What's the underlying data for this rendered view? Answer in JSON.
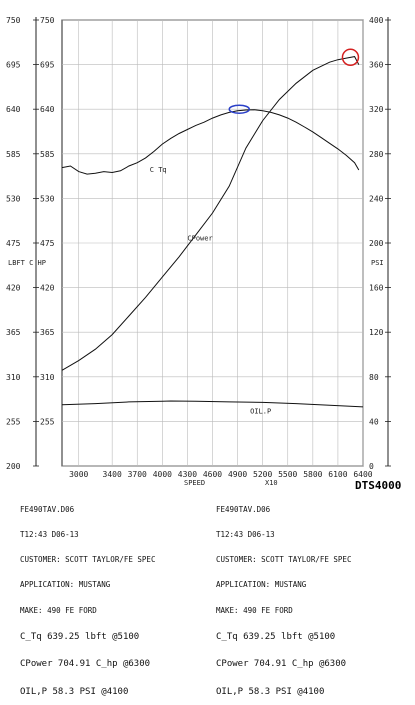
{
  "chart_data": {
    "type": "line",
    "brand": "DTS4000",
    "x_axis": {
      "label": "SPEED",
      "multiplier_label": "X10",
      "range": [
        2800,
        6400
      ],
      "ticks": [
        "3000",
        "3400",
        "3700",
        "4000",
        "4300",
        "4600",
        "4900",
        "5200",
        "5500",
        "5800",
        "6100",
        "6400"
      ]
    },
    "left_axis": {
      "label": "LBFT C HP",
      "range": [
        200,
        750
      ],
      "ticks": [
        "200",
        "255",
        "310",
        "365",
        "420",
        "475",
        "530",
        "585",
        "640",
        "695",
        "750"
      ]
    },
    "inner_left_axis": {
      "range": [
        200,
        750
      ],
      "ticks": [
        "750",
        "695",
        "640",
        "585",
        "530",
        "475",
        "420",
        "365",
        "310",
        "255"
      ]
    },
    "right_axis": {
      "label": "PSI",
      "range": [
        0,
        400
      ],
      "ticks": [
        "0",
        "40",
        "80",
        "120",
        "160",
        "200",
        "240",
        "280",
        "320",
        "360",
        "400"
      ]
    },
    "series": [
      {
        "name": "C Tq",
        "axis": "left",
        "x": [
          2800,
          2900,
          3000,
          3100,
          3200,
          3300,
          3400,
          3500,
          3600,
          3700,
          3800,
          3900,
          4000,
          4100,
          4200,
          4300,
          4400,
          4500,
          4600,
          4700,
          4800,
          4900,
          5000,
          5100,
          5200,
          5300,
          5400,
          5500,
          5600,
          5700,
          5800,
          5900,
          6000,
          6100,
          6200,
          6300,
          6350
        ],
        "y": [
          568,
          570,
          563,
          560,
          561,
          563,
          562,
          564,
          570,
          574,
          580,
          588,
          597,
          604,
          610,
          615,
          620,
          624,
          629,
          633,
          636,
          638,
          639,
          639.25,
          638,
          636,
          633,
          629,
          624,
          618,
          612,
          605,
          598,
          591,
          583,
          574,
          565
        ]
      },
      {
        "name": "CPower",
        "axis": "left",
        "x": [
          2800,
          3000,
          3200,
          3400,
          3600,
          3800,
          4000,
          4200,
          4400,
          4600,
          4800,
          5000,
          5200,
          5400,
          5600,
          5800,
          6000,
          6100,
          6200,
          6300,
          6350
        ],
        "y": [
          318,
          330,
          344,
          362,
          385,
          408,
          433,
          458,
          485,
          512,
          545,
          592,
          626,
          652,
          672,
          688,
          698,
          701,
          703,
          704.91,
          695
        ]
      },
      {
        "name": "OIL.P",
        "axis": "right",
        "x": [
          2800,
          3200,
          3600,
          4000,
          4100,
          4400,
          4800,
          5200,
          5600,
          6000,
          6400
        ],
        "y": [
          55,
          56,
          57.5,
          58,
          58.3,
          58,
          57.5,
          57,
          56,
          54.5,
          53
        ]
      }
    ],
    "annotations": [
      {
        "shape": "ellipse",
        "x": 4920,
        "y": 640,
        "axis": "left"
      },
      {
        "shape": "circle",
        "x": 6250,
        "y": 704,
        "axis": "left"
      }
    ],
    "grid": true
  },
  "info_left": {
    "file": "FE490TAV.D06",
    "time": "T12:43 D06-13",
    "customer": "CUSTOMER: SCOTT TAYLOR/FE SPEC",
    "application": "APPLICATION: MUSTANG",
    "make": "MAKE: 490 FE FORD",
    "tq": "C_Tq 639.25 lbft @5100",
    "power": "CPower 704.91 C_hp @6300",
    "oil": "OIL,P 58.3 PSI @4100"
  },
  "info_right": {
    "file": "FE490TAV.D06",
    "time": "T12:43 D06-13",
    "customer": "CUSTOMER: SCOTT TAYLOR/FE SPEC",
    "application": "APPLICATION: MUSTANG",
    "make": "MAKE: 490 FE FORD",
    "tq": "C_Tq 639.25 lbft @5100",
    "power": "CPower 704.91 C_hp @6300",
    "oil": "OIL,P 58.3 PSI @4100"
  }
}
